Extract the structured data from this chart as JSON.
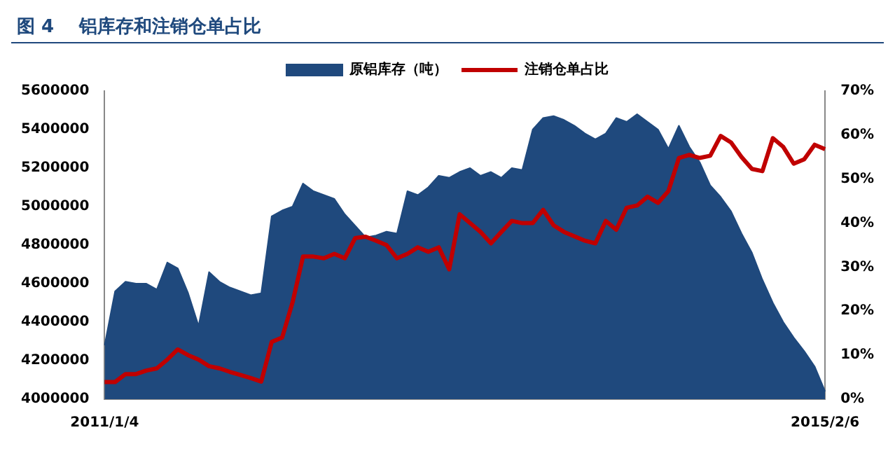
{
  "chart_data": {
    "type": "area",
    "title": "图 4    铝库存和注销仓单占比",
    "categories": [
      "2011/1/4",
      null,
      null,
      null,
      null,
      null,
      null,
      null,
      null,
      null,
      null,
      null,
      null,
      null,
      null,
      null,
      null,
      null,
      null,
      null,
      null,
      null,
      null,
      null,
      null,
      null,
      null,
      null,
      null,
      null,
      null,
      null,
      null,
      null,
      null,
      null,
      null,
      null,
      null,
      null,
      null,
      null,
      null,
      null,
      null,
      null,
      null,
      null,
      null,
      null,
      null,
      null,
      null,
      null,
      null,
      null,
      null,
      null,
      null,
      null,
      null,
      null,
      null,
      null,
      null,
      null,
      null,
      null,
      null,
      "2015/2/6"
    ],
    "series": [
      {
        "name": "原铝库存（吨）",
        "color": "#1f497d",
        "values": [
          4280000,
          4560000,
          4610000,
          4600000,
          4600000,
          4570000,
          4710000,
          4680000,
          4550000,
          4380000,
          4660000,
          4610000,
          4580000,
          4560000,
          4540000,
          4550000,
          4950000,
          4980000,
          5000000,
          5120000,
          5080000,
          5060000,
          5040000,
          4960000,
          4900000,
          4840000,
          4850000,
          4870000,
          4860000,
          5080000,
          5060000,
          5100000,
          5160000,
          5150000,
          5180000,
          5200000,
          5160000,
          5180000,
          5150000,
          5200000,
          5190000,
          5400000,
          5460000,
          5470000,
          5450000,
          5420000,
          5380000,
          5350000,
          5380000,
          5460000,
          5440000,
          5480000,
          5440000,
          5400000,
          5300000,
          5420000,
          5310000,
          5230000,
          5110000,
          5050000,
          4975000,
          4860000,
          4760000,
          4620000,
          4500000,
          4400000,
          4320000,
          4250000,
          4170000,
          4040000
        ]
      },
      {
        "name": "注销仓单占比",
        "type": "line",
        "axis": "y2",
        "color": "#c00000",
        "values": [
          3.9,
          3.9,
          5.7,
          5.7,
          6.5,
          7,
          9,
          11.3,
          10,
          9,
          7.5,
          7,
          6.2,
          5.5,
          4.8,
          4,
          13,
          14,
          22,
          32.4,
          32.4,
          32,
          33,
          32,
          36.6,
          36.9,
          36,
          35,
          32,
          33,
          34.5,
          33.5,
          34.5,
          29.5,
          42,
          40,
          38,
          35.4,
          38,
          40.5,
          40,
          40,
          43,
          39.5,
          38,
          37,
          36,
          35.4,
          40.5,
          38.5,
          43.5,
          44,
          46,
          44.6,
          47.3,
          54.8,
          55.5,
          54.8,
          55.3,
          59.8,
          58.3,
          55,
          52.3,
          51.8,
          59.3,
          57.3,
          53.5,
          54.5,
          57.8,
          56.8
        ]
      }
    ],
    "ylim": [
      4000000,
      5600000
    ],
    "yticks": [
      4000000,
      4200000,
      4400000,
      4600000,
      4800000,
      5000000,
      5200000,
      5400000,
      5600000
    ],
    "y2lim": [
      0,
      70
    ],
    "y2ticks": [
      {
        "value": 0,
        "label": "0%"
      },
      {
        "value": 10,
        "label": "10%"
      },
      {
        "value": 20,
        "label": "20%"
      },
      {
        "value": 30,
        "label": "30%"
      },
      {
        "value": 40,
        "label": "40%"
      },
      {
        "value": 50,
        "label": "50%"
      },
      {
        "value": 60,
        "label": "60%"
      },
      {
        "value": 70,
        "label": "70%"
      }
    ],
    "legend": "top",
    "grid": false,
    "marker": "none",
    "line_style": "solid"
  }
}
